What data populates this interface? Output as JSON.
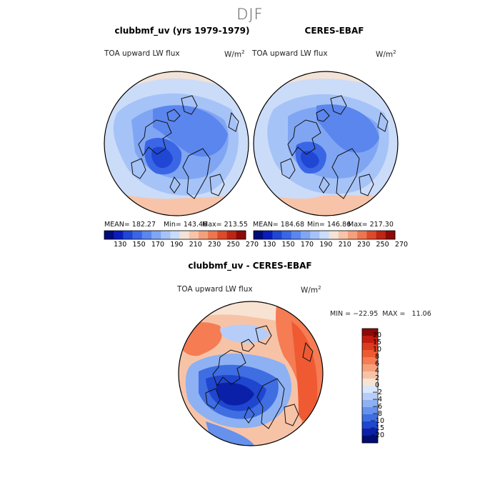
{
  "figure": {
    "season": "DJF"
  },
  "panels": [
    {
      "id": "model",
      "title": "clubbmf_uv (yrs 1979-1979)",
      "variable": "TOA upward LW flux",
      "units_base": "W/m",
      "units_exp": "2",
      "mean_label": "MEAN= 182.27",
      "min_label": "Min= 143.46",
      "max_label": "Max= 213.55"
    },
    {
      "id": "obs",
      "title": "CERES-EBAF",
      "variable": "TOA upward LW flux",
      "units_base": "W/m",
      "units_exp": "2",
      "mean_label": "MEAN= 184.68",
      "min_label": "Min= 146.86",
      "max_label": "Max= 217.30"
    }
  ],
  "abs_colorbar": {
    "labels": [
      "130",
      "150",
      "170",
      "190",
      "210",
      "230",
      "250",
      "270"
    ],
    "colors": [
      "#000b7a",
      "#0a1dbb",
      "#2046d4",
      "#3a66e6",
      "#5b86ee",
      "#80a6f3",
      "#a6c3f7",
      "#cbdcf9",
      "#f3e3d6",
      "#f7c4aa",
      "#f5a07c",
      "#ed7550",
      "#dc4a2b",
      "#bd2515",
      "#8c0a08"
    ]
  },
  "diff": {
    "title": "clubbmf_uv - CERES-EBAF",
    "variable": "TOA upward LW flux",
    "units_base": "W/m",
    "units_exp": "2",
    "minmax_label": "MIN = −22.95  MAX =   11.06",
    "colorbar": {
      "levels": [
        "20",
        "15",
        "10",
        "8",
        "6",
        "4",
        "2",
        "0",
        "−2",
        "−4",
        "−6",
        "−8",
        "−10",
        "−15",
        "−20"
      ],
      "colors": [
        "#8c0a08",
        "#c21c10",
        "#de3a1e",
        "#ef5a33",
        "#f57c53",
        "#f7a07c",
        "#f7c3a7",
        "#f8e3d3",
        "#d9e6fb",
        "#b5cdf8",
        "#8db1f3",
        "#6691ec",
        "#3f6ee2",
        "#1f46cf",
        "#0b20a8",
        "#020c72"
      ]
    }
  },
  "map_style": {
    "coast": "#111111",
    "bg_cold": "#8fb1f1"
  }
}
